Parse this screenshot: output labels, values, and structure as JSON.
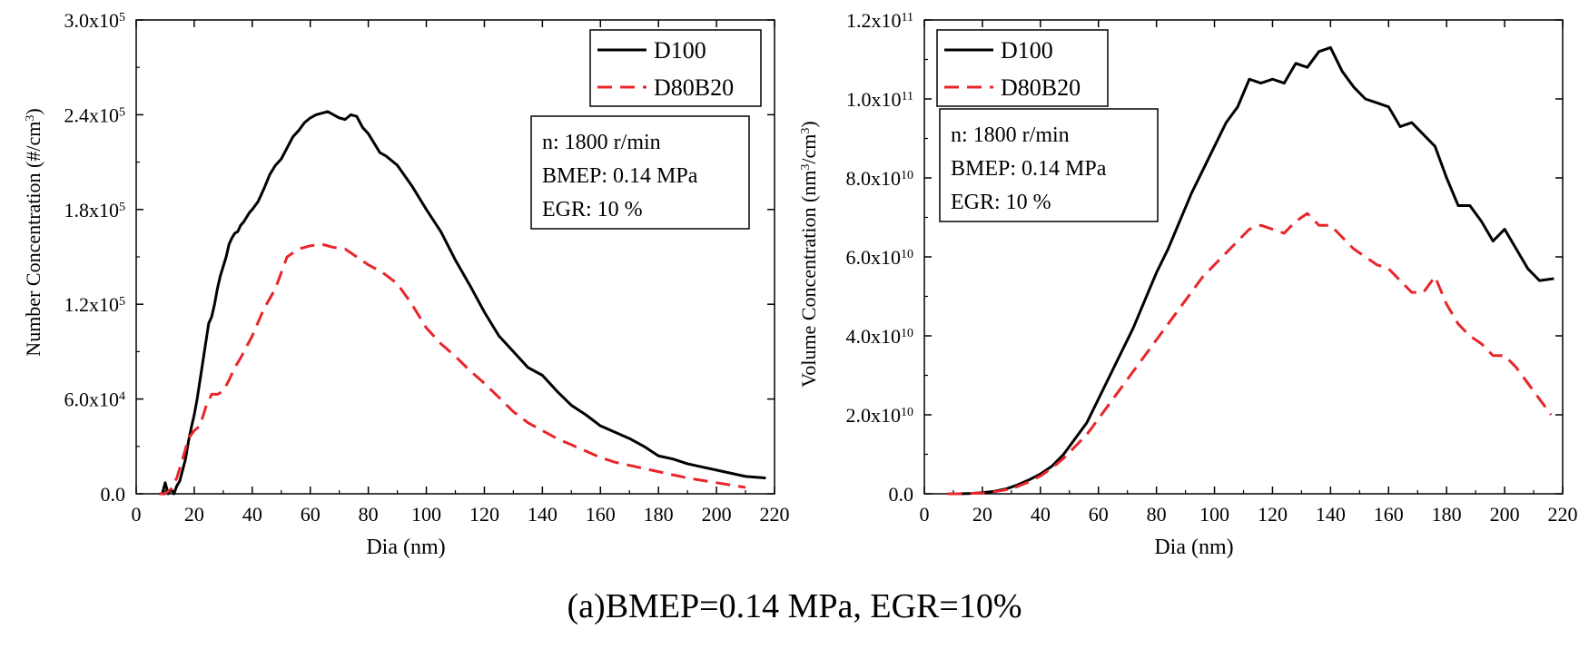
{
  "caption": "(a)BMEP=0.14 MPa, EGR=10%",
  "chart_data": [
    {
      "type": "line",
      "ylabel": "Number Concentration (#/cm",
      "ylabel_sup": "3",
      "ylabel_end": ")",
      "xlabel": "Dia (nm)",
      "xlim": [
        0,
        220
      ],
      "ylim": [
        0,
        300000
      ],
      "xticks": [
        "0",
        "20",
        "40",
        "60",
        "80",
        "100",
        "120",
        "140",
        "160",
        "180",
        "200",
        "220"
      ],
      "yticks": [
        {
          "value": 0,
          "label": "0.0",
          "exp": ""
        },
        {
          "value": 60000,
          "label": "6.0x10",
          "exp": "4"
        },
        {
          "value": 120000,
          "label": "1.2x10",
          "exp": "5"
        },
        {
          "value": 180000,
          "label": "1.8x10",
          "exp": "5"
        },
        {
          "value": 240000,
          "label": "2.4x10",
          "exp": "5"
        },
        {
          "value": 300000,
          "label": "3.0x10",
          "exp": "5"
        }
      ],
      "annotation": [
        "n: 1800 r/min",
        "BMEP: 0.14 MPa",
        "EGR: 10 %"
      ],
      "series": [
        {
          "name": "D100",
          "color": "#000000",
          "dash": "solid",
          "x": [
            8,
            9,
            10,
            11,
            12,
            13,
            14,
            15,
            16,
            17,
            18,
            19,
            20,
            21,
            22,
            23,
            24,
            25,
            26,
            27,
            28,
            29,
            30,
            31,
            32,
            33,
            34,
            35,
            36,
            37,
            38,
            39,
            40,
            42,
            44,
            46,
            48,
            50,
            52,
            54,
            56,
            58,
            60,
            62,
            64,
            66,
            68,
            70,
            72,
            74,
            76,
            78,
            80,
            82,
            84,
            86,
            88,
            90,
            95,
            100,
            105,
            110,
            115,
            120,
            125,
            130,
            135,
            140,
            145,
            150,
            155,
            160,
            165,
            170,
            175,
            180,
            185,
            190,
            195,
            200,
            205,
            210,
            217
          ],
          "y": [
            0,
            0,
            7000,
            0,
            3000,
            0,
            5000,
            8000,
            15000,
            22000,
            33000,
            42000,
            50000,
            60000,
            72000,
            84000,
            96000,
            108000,
            112000,
            120000,
            130000,
            138000,
            144000,
            150000,
            158000,
            162000,
            165000,
            166000,
            170000,
            172000,
            175000,
            178000,
            180000,
            185000,
            193000,
            202000,
            208000,
            212000,
            219000,
            226000,
            230000,
            235000,
            238000,
            240000,
            241000,
            242000,
            240000,
            238000,
            237000,
            240000,
            239000,
            232000,
            228000,
            222000,
            216000,
            214000,
            211000,
            208000,
            195000,
            180000,
            166000,
            148000,
            132000,
            115000,
            100000,
            90000,
            80000,
            75000,
            65000,
            56000,
            50000,
            43000,
            39000,
            35000,
            30000,
            24000,
            22000,
            19000,
            17000,
            15000,
            13000,
            11000,
            10000
          ]
        },
        {
          "name": "D80B20",
          "color": "#e8262a",
          "dash": "dashed",
          "x": [
            8,
            10,
            12,
            14,
            16,
            18,
            20,
            22,
            24,
            26,
            28,
            30,
            32,
            34,
            36,
            38,
            40,
            44,
            48,
            52,
            56,
            60,
            64,
            68,
            72,
            76,
            80,
            85,
            90,
            95,
            100,
            105,
            110,
            115,
            120,
            125,
            130,
            135,
            140,
            145,
            150,
            155,
            160,
            165,
            170,
            175,
            180,
            185,
            190,
            195,
            200,
            205,
            210
          ],
          "y": [
            0,
            0,
            3000,
            10000,
            22000,
            35000,
            40000,
            43000,
            55000,
            63000,
            63000,
            65000,
            72000,
            80000,
            86000,
            93000,
            100000,
            117000,
            130000,
            150000,
            155000,
            157000,
            158000,
            156000,
            155000,
            150000,
            145000,
            140000,
            133000,
            120000,
            105000,
            95000,
            87000,
            78000,
            70000,
            61000,
            52000,
            45000,
            40000,
            35000,
            31000,
            27000,
            23000,
            20000,
            18000,
            16000,
            14000,
            12000,
            10000,
            8500,
            7000,
            5500,
            4000
          ]
        }
      ],
      "legend": [
        "D100",
        "D80B20"
      ]
    },
    {
      "type": "line",
      "ylabel": "Volume Concentration (nm",
      "ylabel_sup": "3",
      "ylabel_end": "/cm",
      "ylabel_sup2": "3",
      "ylabel_end2": ")",
      "xlabel": "Dia (nm)",
      "xlim": [
        0,
        220
      ],
      "ylim": [
        0,
        120000000000
      ],
      "xticks": [
        "0",
        "20",
        "40",
        "60",
        "80",
        "100",
        "120",
        "140",
        "160",
        "180",
        "200",
        "220"
      ],
      "yticks": [
        {
          "value": 0,
          "label": "0.0",
          "exp": ""
        },
        {
          "value": 20000000000,
          "label": "2.0x10",
          "exp": "10"
        },
        {
          "value": 40000000000,
          "label": "4.0x10",
          "exp": "10"
        },
        {
          "value": 60000000000,
          "label": "6.0x10",
          "exp": "10"
        },
        {
          "value": 80000000000,
          "label": "8.0x10",
          "exp": "10"
        },
        {
          "value": 100000000000,
          "label": "1.0x10",
          "exp": "11"
        },
        {
          "value": 120000000000,
          "label": "1.2x10",
          "exp": "11"
        }
      ],
      "annotation": [
        "n: 1800 r/min",
        "BMEP: 0.14 MPa",
        "EGR: 10 %"
      ],
      "series": [
        {
          "name": "D100",
          "color": "#000000",
          "dash": "solid",
          "x": [
            8,
            12,
            16,
            20,
            24,
            28,
            32,
            36,
            40,
            44,
            48,
            52,
            56,
            60,
            64,
            68,
            72,
            76,
            80,
            84,
            88,
            92,
            96,
            100,
            104,
            108,
            112,
            116,
            120,
            124,
            128,
            132,
            136,
            140,
            144,
            148,
            152,
            156,
            160,
            164,
            168,
            172,
            176,
            180,
            184,
            188,
            192,
            196,
            200,
            204,
            208,
            212,
            217
          ],
          "y": [
            0,
            0,
            0.1,
            0.3,
            0.6,
            1.2,
            2.2,
            3.5,
            5,
            7,
            10,
            14,
            18,
            24,
            30,
            36,
            42,
            49,
            56,
            62,
            69,
            76,
            82,
            88,
            94,
            98,
            105,
            104,
            105,
            104,
            109,
            108,
            112,
            113,
            107,
            103,
            100,
            99,
            98,
            93,
            94,
            91,
            88,
            80,
            73,
            73,
            69,
            64,
            67,
            62,
            57,
            54,
            54.5
          ]
        },
        {
          "name": "D80B20",
          "color": "#e8262a",
          "dash": "dashed",
          "x": [
            8,
            12,
            16,
            20,
            24,
            28,
            32,
            36,
            40,
            44,
            48,
            52,
            56,
            60,
            64,
            68,
            72,
            76,
            80,
            84,
            88,
            92,
            96,
            100,
            104,
            108,
            112,
            116,
            120,
            124,
            128,
            132,
            136,
            140,
            144,
            148,
            152,
            156,
            160,
            164,
            168,
            172,
            176,
            180,
            184,
            188,
            192,
            196,
            200,
            204,
            208,
            212,
            216
          ],
          "y": [
            0,
            0,
            0.1,
            0.2,
            0.5,
            1,
            1.8,
            3,
            4.5,
            6.5,
            9,
            12,
            15,
            19,
            23,
            27,
            31,
            35,
            39,
            43,
            47,
            51,
            55,
            58,
            61,
            64,
            67,
            68,
            67,
            66,
            69,
            71,
            68,
            68,
            65,
            62,
            60,
            58,
            57,
            54,
            51,
            51,
            55,
            48,
            43,
            40,
            38,
            35,
            35,
            32,
            28,
            24,
            20
          ]
        }
      ],
      "series_scale": 1000000000,
      "legend": [
        "D100",
        "D80B20"
      ]
    }
  ]
}
